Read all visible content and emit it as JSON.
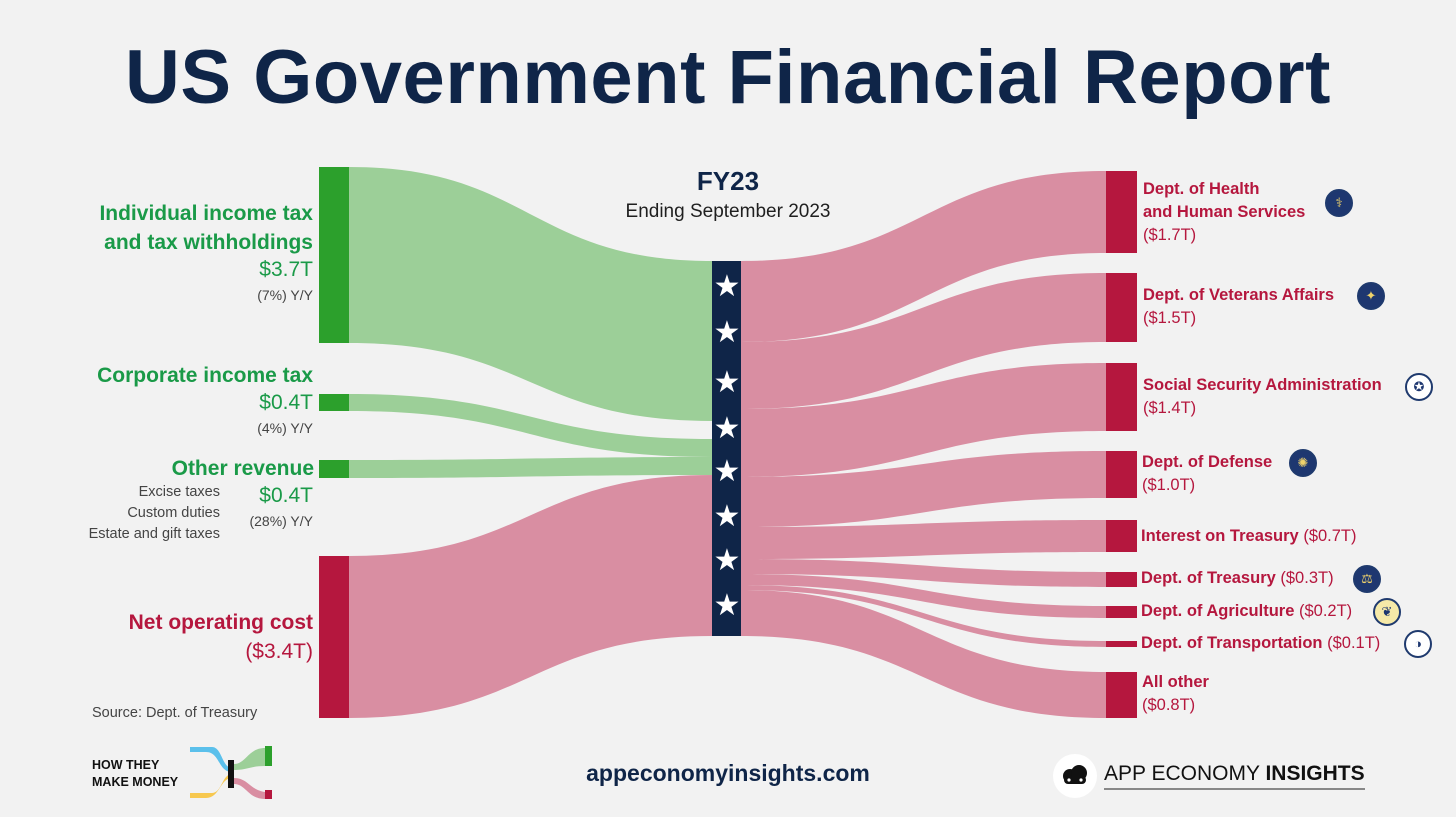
{
  "title": "US Government Financial Report",
  "period": {
    "label": "FY23",
    "subtitle": "Ending September 2023"
  },
  "sources": {
    "individual": {
      "label_line1": "Individual income tax",
      "label_line2": "and tax withholdings",
      "value": "$3.7T",
      "yoy": "(7%) Y/Y"
    },
    "corporate": {
      "label": "Corporate income tax",
      "value": "$0.4T",
      "yoy": "(4%) Y/Y"
    },
    "other": {
      "label": "Other revenue",
      "value": "$0.4T",
      "yoy": "(28%) Y/Y",
      "examples": [
        "Excise taxes",
        "Custom duties",
        "Estate and gift taxes"
      ]
    },
    "net_cost": {
      "label": "Net operating cost",
      "value": "($3.4T)"
    }
  },
  "destinations": [
    {
      "name_line1": "Dept. of Health",
      "name_line2": "and Human Services",
      "value": "($1.7T)",
      "icon": "hhs-seal-icon"
    },
    {
      "name": "Dept. of Veterans Affairs",
      "value": "($1.5T)",
      "icon": "va-seal-icon"
    },
    {
      "name": "Social Security Administration",
      "value": "($1.4T)",
      "icon": "ssa-seal-icon"
    },
    {
      "name": "Dept. of Defense",
      "value": "($1.0T)",
      "icon": "dod-seal-icon"
    },
    {
      "name": "Interest on Treasury",
      "value": "($0.7T)"
    },
    {
      "name": "Dept. of Treasury",
      "value": "($0.3T)",
      "icon": "treasury-seal-icon"
    },
    {
      "name": "Dept. of Agriculture",
      "value": "($0.2T)",
      "icon": "usda-seal-icon"
    },
    {
      "name": "Dept. of Transportation",
      "value": "($0.1T)",
      "icon": "dot-seal-icon"
    },
    {
      "name": "All other",
      "value": "($0.8T)"
    }
  ],
  "source_note": "Source: Dept. of Treasury",
  "footer": {
    "url": "appeconomyinsights.com",
    "left_brand_line1": "HOW THEY",
    "left_brand_line2": "MAKE MONEY",
    "right_brand_regular": "APP ECONOMY",
    "right_brand_bold": "INSIGHTS"
  },
  "colors": {
    "revenue": "#2ca02c",
    "revenue_flow": "#9ccf98",
    "cost": "#b5173e",
    "cost_flow": "#d98ea2",
    "navy": "#0f2548"
  }
}
